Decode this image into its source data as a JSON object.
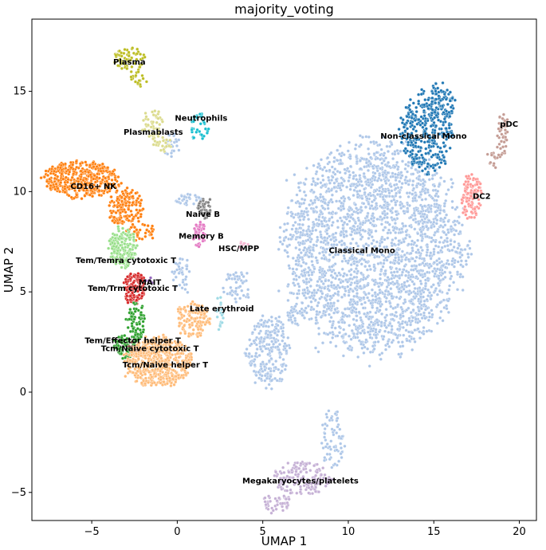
{
  "chart_data": {
    "type": "scatter",
    "title": "majority_voting",
    "xlabel": "UMAP 1",
    "ylabel": "UMAP 2",
    "xlim": [
      -8.5,
      21
    ],
    "ylim": [
      -6.4,
      18.6
    ],
    "xticks": [
      -5,
      0,
      5,
      10,
      15,
      20
    ],
    "yticks": [
      -5,
      0,
      5,
      10,
      15
    ],
    "xtick_labels": [
      "−5",
      "0",
      "5",
      "10",
      "15",
      "20"
    ],
    "ytick_labels": [
      "−5",
      "0",
      "5",
      "10",
      "15"
    ],
    "grid": false,
    "legend": "none (labels placed on clusters)",
    "clusters": [
      {
        "name": "Classical Mono",
        "color": "#aec7e8",
        "label_x": 10.8,
        "label_y": 7.1,
        "blobs": [
          {
            "cx": 11.5,
            "cy": 7.2,
            "rx": 5.2,
            "ry": 5.0,
            "n": 2600
          },
          {
            "cx": 5.3,
            "cy": 2.1,
            "rx": 1.2,
            "ry": 1.8,
            "n": 240
          },
          {
            "cx": 9.1,
            "cy": -2.3,
            "rx": 0.7,
            "ry": 1.5,
            "n": 70
          },
          {
            "cx": 6.9,
            "cy": 3.9,
            "rx": 0.6,
            "ry": 0.5,
            "n": 40
          },
          {
            "cx": 3.5,
            "cy": 5.2,
            "rx": 0.9,
            "ry": 0.8,
            "n": 50
          },
          {
            "cx": 0.6,
            "cy": 9.6,
            "rx": 0.8,
            "ry": 0.3,
            "n": 30
          },
          {
            "cx": -0.3,
            "cy": 12.3,
            "rx": 0.5,
            "ry": 0.6,
            "n": 25
          },
          {
            "cx": 0.2,
            "cy": 5.8,
            "rx": 0.6,
            "ry": 0.9,
            "n": 40
          }
        ]
      },
      {
        "name": "Non-classical Mono",
        "color": "#1f77b4",
        "label_x": 14.4,
        "label_y": 12.8,
        "blobs": [
          {
            "cx": 14.6,
            "cy": 13.0,
            "rx": 1.5,
            "ry": 2.0,
            "n": 330
          },
          {
            "cx": 15.4,
            "cy": 14.5,
            "rx": 0.8,
            "ry": 0.9,
            "n": 80
          }
        ]
      },
      {
        "name": "DC2",
        "color": "#ff9896",
        "label_x": 17.8,
        "label_y": 9.8,
        "blobs": [
          {
            "cx": 17.2,
            "cy": 9.7,
            "rx": 0.6,
            "ry": 1.1,
            "n": 110
          }
        ]
      },
      {
        "name": "pDC",
        "color": "#c49c94",
        "label_x": 19.4,
        "label_y": 13.4,
        "blobs": [
          {
            "cx": 19.0,
            "cy": 12.8,
            "rx": 0.35,
            "ry": 1.2,
            "n": 45
          },
          {
            "cx": 18.5,
            "cy": 11.7,
            "rx": 0.4,
            "ry": 0.5,
            "n": 15
          }
        ]
      },
      {
        "name": "CD16+ NK",
        "color": "#ff7f0e",
        "label_x": -4.9,
        "label_y": 10.3,
        "blobs": [
          {
            "cx": -5.6,
            "cy": 10.6,
            "rx": 2.2,
            "ry": 0.9,
            "n": 430
          },
          {
            "cx": -3.0,
            "cy": 9.2,
            "rx": 1.0,
            "ry": 0.9,
            "n": 150
          },
          {
            "cx": -2.1,
            "cy": 8.0,
            "rx": 0.8,
            "ry": 0.5,
            "n": 40
          }
        ]
      },
      {
        "name": "Plasma",
        "color": "#bcbd22",
        "label_x": -2.8,
        "label_y": 16.5,
        "blobs": [
          {
            "cx": -2.8,
            "cy": 16.6,
            "rx": 1.0,
            "ry": 0.6,
            "n": 60
          },
          {
            "cx": -2.2,
            "cy": 15.7,
            "rx": 0.5,
            "ry": 0.5,
            "n": 25
          }
        ]
      },
      {
        "name": "Plasmablasts",
        "color": "#dbdb8d",
        "label_x": -1.4,
        "label_y": 13.0,
        "blobs": [
          {
            "cx": -1.4,
            "cy": 13.3,
            "rx": 0.6,
            "ry": 0.7,
            "n": 45
          },
          {
            "cx": -0.9,
            "cy": 12.4,
            "rx": 0.6,
            "ry": 0.4,
            "n": 25
          }
        ]
      },
      {
        "name": "Neutrophils",
        "color": "#17becf",
        "label_x": 1.4,
        "label_y": 13.7,
        "blobs": [
          {
            "cx": 1.3,
            "cy": 13.2,
            "rx": 0.6,
            "ry": 0.7,
            "n": 40
          }
        ]
      },
      {
        "name": "Naive B",
        "color": "#7f7f7f",
        "label_x": 1.5,
        "label_y": 8.9,
        "blobs": [
          {
            "cx": 1.6,
            "cy": 9.2,
            "rx": 0.4,
            "ry": 0.5,
            "n": 45
          }
        ]
      },
      {
        "name": "Memory B",
        "color": "#e377c2",
        "label_x": 1.4,
        "label_y": 7.8,
        "blobs": [
          {
            "cx": 1.3,
            "cy": 7.8,
            "rx": 0.4,
            "ry": 0.6,
            "n": 45
          }
        ]
      },
      {
        "name": "HSC/MPP",
        "color": "#f7b6d2",
        "label_x": 3.6,
        "label_y": 7.2,
        "blobs": [
          {
            "cx": 3.9,
            "cy": 7.2,
            "rx": 0.3,
            "ry": 0.3,
            "n": 8
          }
        ]
      },
      {
        "name": "Tem/Temra cytotoxic T",
        "color": "#98df8a",
        "label_x": -3.0,
        "label_y": 6.6,
        "blobs": [
          {
            "cx": -3.2,
            "cy": 7.2,
            "rx": 0.8,
            "ry": 1.0,
            "n": 160
          }
        ]
      },
      {
        "name": "MAIT",
        "color": "#9467bd",
        "label_x": -1.6,
        "label_y": 5.5,
        "blobs": [
          {
            "cx": -1.6,
            "cy": 5.6,
            "rx": 0.25,
            "ry": 0.25,
            "n": 6
          }
        ]
      },
      {
        "name": "Tem/Trm cytotoxic T",
        "color": "#d62728",
        "label_x": -2.6,
        "label_y": 5.2,
        "blobs": [
          {
            "cx": -2.5,
            "cy": 5.2,
            "rx": 0.6,
            "ry": 0.8,
            "n": 130
          }
        ]
      },
      {
        "name": "Late erythroid",
        "color": "#9edae5",
        "label_x": 2.6,
        "label_y": 4.2,
        "blobs": [
          {
            "cx": 2.5,
            "cy": 4.0,
            "rx": 0.2,
            "ry": 1.0,
            "n": 20
          }
        ]
      },
      {
        "name": "Tem/Effector helper T",
        "color": "#2ca02c",
        "label_x": -2.6,
        "label_y": 2.6,
        "blobs": [
          {
            "cx": -2.4,
            "cy": 3.5,
            "rx": 0.5,
            "ry": 1.0,
            "n": 80
          },
          {
            "cx": -3.0,
            "cy": 2.3,
            "rx": 0.7,
            "ry": 0.6,
            "n": 90
          }
        ]
      },
      {
        "name": "Tcm/Naive cytotoxic T",
        "color": "#8c564b",
        "label_x": -1.6,
        "label_y": 2.2,
        "blobs": [
          {
            "cx": -2.2,
            "cy": 2.2,
            "rx": 0.6,
            "ry": 0.4,
            "n": 30
          }
        ]
      },
      {
        "name": "Tcm/Naive helper T",
        "color": "#ffbb78",
        "label_x": -0.7,
        "label_y": 1.4,
        "blobs": [
          {
            "cx": -1.1,
            "cy": 1.5,
            "rx": 1.9,
            "ry": 1.2,
            "n": 560
          },
          {
            "cx": 0.9,
            "cy": 3.6,
            "rx": 1.0,
            "ry": 0.9,
            "n": 140
          }
        ]
      },
      {
        "name": "Megakaryocytes/platelets",
        "color": "#c5b0d5",
        "label_x": 7.2,
        "label_y": -4.4,
        "blobs": [
          {
            "cx": 7.3,
            "cy": -4.3,
            "rx": 1.7,
            "ry": 0.8,
            "n": 160
          },
          {
            "cx": 5.8,
            "cy": -5.5,
            "rx": 0.8,
            "ry": 0.5,
            "n": 50
          }
        ]
      }
    ]
  }
}
